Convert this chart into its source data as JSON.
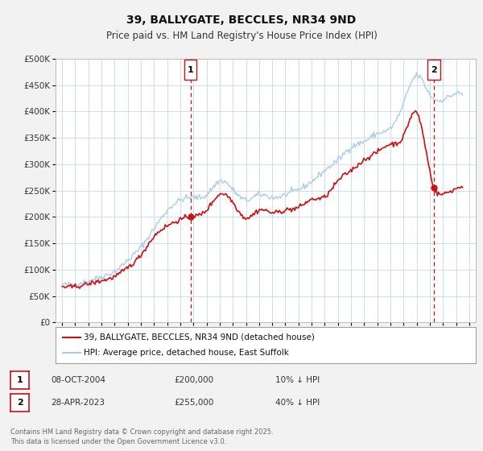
{
  "title": "39, BALLYGATE, BECCLES, NR34 9ND",
  "subtitle": "Price paid vs. HM Land Registry's House Price Index (HPI)",
  "bg_color": "#f2f2f2",
  "plot_bg_color": "#ffffff",
  "grid_color": "#c8d8e8",
  "hpi_color": "#aaccee",
  "price_color": "#cc1111",
  "marker1_date_x": 2004.77,
  "marker1_y": 200000,
  "marker1_label": "1",
  "marker1_date_str": "08-OCT-2004",
  "marker1_price": "£200,000",
  "marker1_hpi": "10% ↓ HPI",
  "marker2_date_x": 2023.33,
  "marker2_y": 255000,
  "marker2_label": "2",
  "marker2_date_str": "28-APR-2023",
  "marker2_price": "£255,000",
  "marker2_hpi": "40% ↓ HPI",
  "legend_line1": "39, BALLYGATE, BECCLES, NR34 9ND (detached house)",
  "legend_line2": "HPI: Average price, detached house, East Suffolk",
  "footer": "Contains HM Land Registry data © Crown copyright and database right 2025.\nThis data is licensed under the Open Government Licence v3.0.",
  "ylim": [
    0,
    500000
  ],
  "xlim": [
    1994.5,
    2026.5
  ],
  "yticks": [
    0,
    50000,
    100000,
    150000,
    200000,
    250000,
    300000,
    350000,
    400000,
    450000,
    500000
  ],
  "ytick_labels": [
    "£0",
    "£50K",
    "£100K",
    "£150K",
    "£200K",
    "£250K",
    "£300K",
    "£350K",
    "£400K",
    "£450K",
    "£500K"
  ]
}
